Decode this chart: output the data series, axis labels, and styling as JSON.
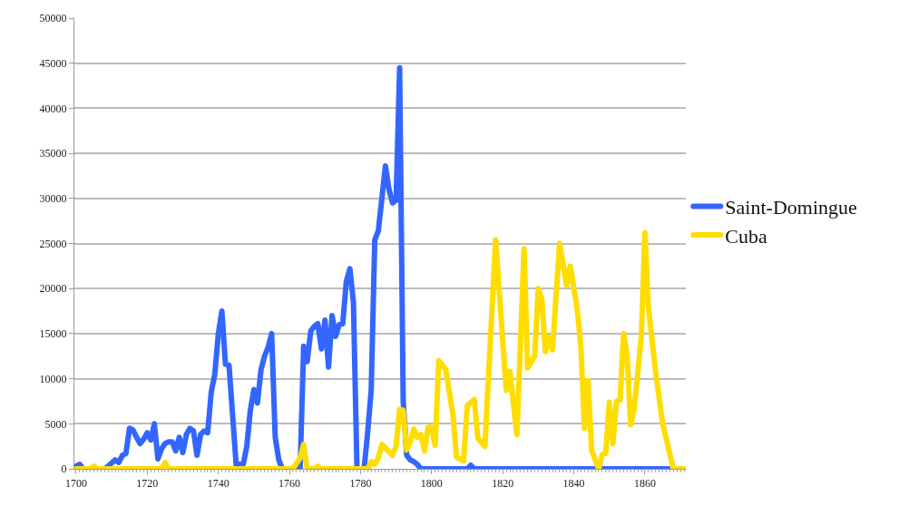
{
  "chart_data": {
    "type": "line",
    "xlim": [
      1699.5,
      1871.5
    ],
    "xticks": [
      1700,
      1720,
      1740,
      1760,
      1780,
      1800,
      1820,
      1840,
      1860
    ],
    "ylim": [
      0,
      50000
    ],
    "yticks": [
      0,
      5000,
      10000,
      15000,
      20000,
      25000,
      30000,
      35000,
      40000,
      45000,
      50000
    ],
    "grid": "y",
    "legend": "right",
    "marker": "none",
    "line_style": "solid",
    "series": [
      {
        "name": "Saint-Domingue",
        "color": "#3366ff",
        "x": [
          1700,
          1701,
          1702,
          1708,
          1709,
          1711,
          1712,
          1713,
          1714,
          1715,
          1716,
          1717,
          1718,
          1719,
          1720,
          1721,
          1722,
          1723,
          1724,
          1725,
          1726,
          1727,
          1728,
          1729,
          1730,
          1731,
          1732,
          1733,
          1734,
          1735,
          1736,
          1737,
          1738,
          1739,
          1740,
          1741,
          1742,
          1743,
          1744,
          1745,
          1746,
          1747,
          1748,
          1749,
          1750,
          1751,
          1752,
          1753,
          1754,
          1755,
          1756,
          1757,
          1758,
          1763,
          1764,
          1765,
          1766,
          1767,
          1768,
          1769,
          1770,
          1771,
          1772,
          1773,
          1774,
          1775,
          1776,
          1777,
          1778,
          1779,
          1781,
          1782,
          1783,
          1784,
          1785,
          1786,
          1787,
          1788,
          1789,
          1790,
          1791,
          1792,
          1793,
          1794,
          1795,
          1796,
          1797,
          1810,
          1811,
          1812,
          1867
        ],
        "values": [
          300,
          500,
          0,
          0,
          300,
          1000,
          700,
          1500,
          1700,
          4500,
          4300,
          3500,
          2800,
          3300,
          4000,
          3200,
          5000,
          1100,
          2200,
          2800,
          3000,
          3000,
          2000,
          3500,
          1800,
          3800,
          4500,
          4200,
          1500,
          3800,
          4200,
          4000,
          8500,
          10500,
          15000,
          17500,
          11600,
          11500,
          6000,
          500,
          500,
          500,
          2500,
          6500,
          8800,
          7300,
          11000,
          12500,
          13500,
          15000,
          3500,
          1000,
          0,
          0,
          13600,
          11900,
          15300,
          15800,
          16100,
          13300,
          16500,
          11300,
          17000,
          14700,
          16000,
          16100,
          20800,
          22200,
          18500,
          0,
          0,
          4000,
          8700,
          25400,
          26400,
          30000,
          33600,
          31000,
          29500,
          29800,
          44500,
          7500,
          1500,
          1000,
          800,
          500,
          0,
          0,
          400,
          0,
          0
        ]
      },
      {
        "name": "Cuba",
        "color": "#ffdd00",
        "x": [
          1700,
          1704,
          1705,
          1706,
          1724,
          1725,
          1726,
          1761,
          1763,
          1764,
          1765,
          1767,
          1768,
          1769,
          1782,
          1783,
          1784,
          1785,
          1786,
          1787,
          1789,
          1790,
          1791,
          1792,
          1793,
          1794,
          1795,
          1796,
          1797,
          1798,
          1799,
          1800,
          1801,
          1802,
          1804,
          1806,
          1807,
          1809,
          1810,
          1812,
          1813,
          1815,
          1818,
          1821,
          1822,
          1824,
          1826,
          1827,
          1829,
          1830,
          1831,
          1832,
          1833,
          1834,
          1836,
          1838,
          1839,
          1841,
          1842,
          1843,
          1844,
          1845,
          1847,
          1848,
          1849,
          1850,
          1851,
          1852,
          1853,
          1854,
          1855,
          1856,
          1857,
          1859,
          1860,
          1861,
          1863,
          1865,
          1867,
          1868,
          1871
        ],
        "values": [
          0,
          0,
          300,
          0,
          0,
          700,
          0,
          0,
          1200,
          2700,
          0,
          0,
          300,
          0,
          0,
          800,
          500,
          1200,
          2700,
          2300,
          1500,
          2500,
          6600,
          6500,
          2100,
          3000,
          4400,
          3500,
          3800,
          2000,
          4600,
          4600,
          2600,
          12000,
          11000,
          6000,
          1300,
          900,
          7000,
          7700,
          3400,
          2500,
          25400,
          8700,
          10800,
          3800,
          24400,
          11200,
          12500,
          20000,
          18800,
          13000,
          14600,
          13200,
          25000,
          20300,
          22500,
          17600,
          13500,
          4500,
          9800,
          2100,
          0,
          1600,
          1700,
          7400,
          2800,
          7500,
          7600,
          15000,
          12600,
          4900,
          6700,
          14700,
          26200,
          17900,
          10800,
          5000,
          1700,
          0,
          0
        ]
      }
    ]
  }
}
